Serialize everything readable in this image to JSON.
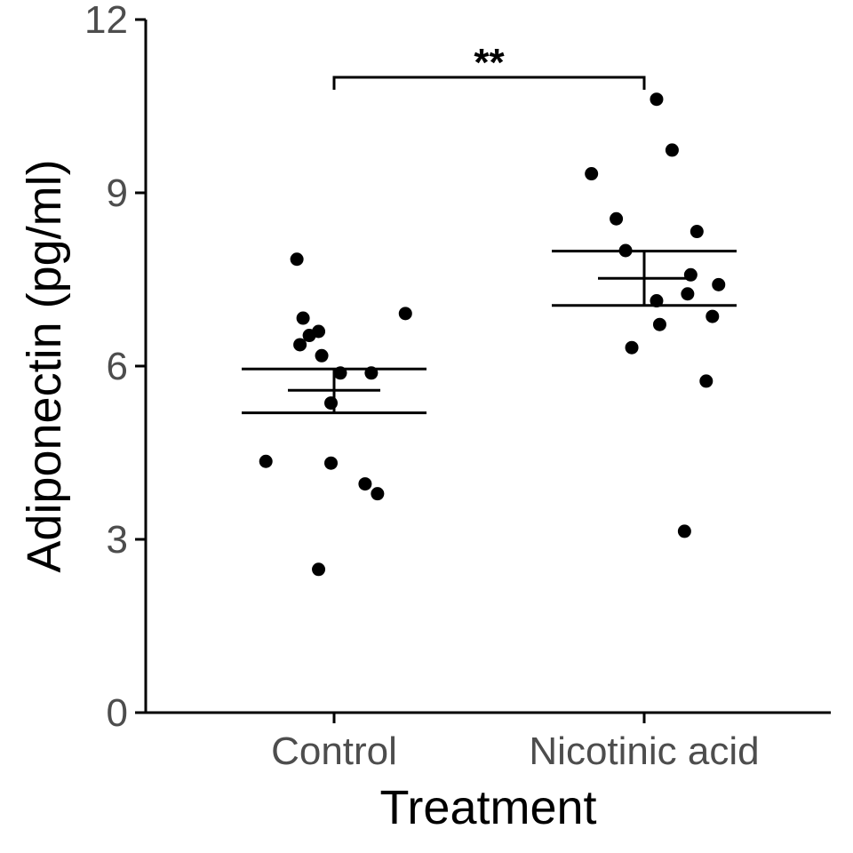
{
  "chart_data": {
    "type": "scatter",
    "xlabel": "Treatment",
    "ylabel": "Adiponectin (pg/ml)",
    "categories": [
      "Control",
      "Nicotinic acid"
    ],
    "ylim": [
      0,
      12
    ],
    "yticks": [
      0,
      3,
      6,
      9,
      12
    ],
    "ytick_labels": [
      "0",
      "3",
      "6",
      "9",
      "12"
    ],
    "grid": false,
    "legend": "none",
    "significance": {
      "label": "**",
      "between": [
        "Control",
        "Nicotinic acid"
      ],
      "y": 11.0
    },
    "series": [
      {
        "category": "Control",
        "points": [
          {
            "dx": -0.12,
            "y": 7.85
          },
          {
            "dx": -0.1,
            "y": 6.83
          },
          {
            "dx": -0.08,
            "y": 6.53
          },
          {
            "dx": -0.05,
            "y": 6.6
          },
          {
            "dx": -0.11,
            "y": 6.37
          },
          {
            "dx": -0.04,
            "y": 6.18
          },
          {
            "dx": 0.23,
            "y": 6.91
          },
          {
            "dx": 0.02,
            "y": 5.88
          },
          {
            "dx": 0.12,
            "y": 5.88
          },
          {
            "dx": -0.01,
            "y": 5.36
          },
          {
            "dx": -0.22,
            "y": 4.35
          },
          {
            "dx": -0.01,
            "y": 4.32
          },
          {
            "dx": 0.1,
            "y": 3.96
          },
          {
            "dx": 0.14,
            "y": 3.79
          },
          {
            "dx": -0.05,
            "y": 2.48
          }
        ],
        "mean": 5.58,
        "se_upper": 5.95,
        "se_lower": 5.19
      },
      {
        "category": "Nicotinic acid",
        "points": [
          {
            "dx": 0.04,
            "y": 10.62
          },
          {
            "dx": 0.09,
            "y": 9.74
          },
          {
            "dx": -0.17,
            "y": 9.33
          },
          {
            "dx": -0.09,
            "y": 8.55
          },
          {
            "dx": 0.17,
            "y": 8.33
          },
          {
            "dx": -0.06,
            "y": 8.0
          },
          {
            "dx": 0.15,
            "y": 7.58
          },
          {
            "dx": 0.24,
            "y": 7.41
          },
          {
            "dx": 0.14,
            "y": 7.25
          },
          {
            "dx": 0.04,
            "y": 7.13
          },
          {
            "dx": 0.22,
            "y": 6.86
          },
          {
            "dx": 0.05,
            "y": 6.72
          },
          {
            "dx": -0.04,
            "y": 6.32
          },
          {
            "dx": 0.2,
            "y": 5.74
          },
          {
            "dx": 0.13,
            "y": 3.14
          }
        ],
        "mean": 7.52,
        "se_upper": 7.99,
        "se_lower": 7.05
      }
    ]
  }
}
